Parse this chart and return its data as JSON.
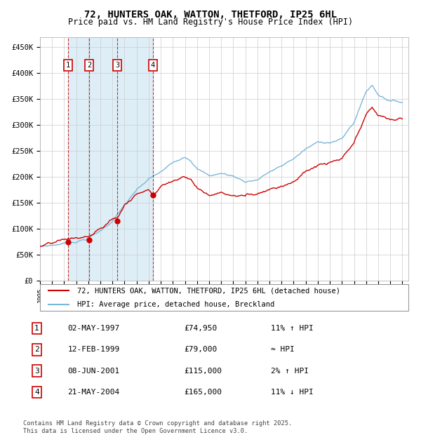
{
  "title": "72, HUNTERS OAK, WATTON, THETFORD, IP25 6HL",
  "subtitle": "Price paid vs. HM Land Registry's House Price Index (HPI)",
  "ylim": [
    0,
    470000
  ],
  "yticks": [
    0,
    50000,
    100000,
    150000,
    200000,
    250000,
    300000,
    350000,
    400000,
    450000
  ],
  "ytick_labels": [
    "£0",
    "£50K",
    "£100K",
    "£150K",
    "£200K",
    "£250K",
    "£300K",
    "£350K",
    "£400K",
    "£450K"
  ],
  "hpi_color": "#7ab8d9",
  "price_color": "#cc0000",
  "sale_prices": [
    74950,
    79000,
    115000,
    165000
  ],
  "sale_labels": [
    "1",
    "2",
    "3",
    "4"
  ],
  "sale_info": [
    {
      "num": "1",
      "date": "02-MAY-1997",
      "price": "£74,950",
      "vs_hpi": "11% ↑ HPI"
    },
    {
      "num": "2",
      "date": "12-FEB-1999",
      "price": "£79,000",
      "vs_hpi": "≈ HPI"
    },
    {
      "num": "3",
      "date": "08-JUN-2001",
      "price": "£115,000",
      "vs_hpi": "2% ↑ HPI"
    },
    {
      "num": "4",
      "date": "21-MAY-2004",
      "price": "£165,000",
      "vs_hpi": "11% ↓ HPI"
    }
  ],
  "legend_line1": "72, HUNTERS OAK, WATTON, THETFORD, IP25 6HL (detached house)",
  "legend_line2": "HPI: Average price, detached house, Breckland",
  "footer": "Contains HM Land Registry data © Crown copyright and database right 2025.\nThis data is licensed under the Open Government Licence v3.0.",
  "background_color": "#ffffff",
  "grid_color": "#cccccc"
}
